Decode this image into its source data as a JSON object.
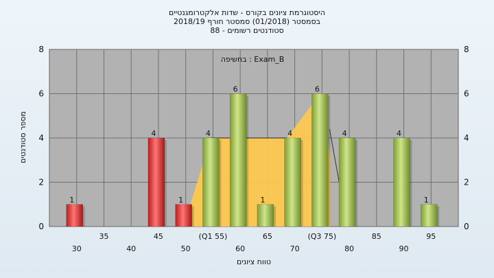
{
  "header": {
    "title_lines": [
      "היסטוגרמת ציונים בקורס - שדות אלקטרומגנטיים",
      "בסמסטר  (01/2018)  סמסטר חורף 2018/19",
      "סטודנטים רשומים - 88"
    ]
  },
  "chart_data": {
    "type": "bar",
    "title": "היסטוגרמת ציונים בקורס - שדות אלקטרומגנטיים",
    "annotation": "בחשיפה : Exam_B",
    "xlabel": "טווח ציונים",
    "ylabel": "מספר סטודנטים",
    "ylim": [
      0,
      8
    ],
    "yticks": [
      0,
      2,
      4,
      6,
      8
    ],
    "grid": true,
    "categories": [
      "30",
      "35",
      "40",
      "45",
      "50",
      "55",
      "60",
      "65",
      "70",
      "75",
      "80",
      "85",
      "90",
      "95"
    ],
    "xtick_labels": [
      "30",
      "35",
      "40",
      "45",
      "50",
      "(Q1 55)",
      "60",
      "65",
      "70",
      "(Q3 75)",
      "80",
      "85",
      "90",
      "95"
    ],
    "values": [
      1,
      0,
      0,
      4,
      1,
      4,
      6,
      1,
      4,
      6,
      4,
      0,
      4,
      1
    ],
    "bar_colors": [
      "#e8403f",
      "#e8403f",
      "#e8403f",
      "#e8403f",
      "#e8403f",
      "#a8cc50",
      "#a8cc50",
      "#a8cc50",
      "#a8cc50",
      "#a8cc50",
      "#a8cc50",
      "#a8cc50",
      "#a8cc50",
      "#a8cc50"
    ],
    "box_plot": {
      "q1": "55",
      "q3": "75",
      "color": "#ffc94d"
    },
    "colors": {
      "plot_background": "#b2b2b2",
      "fail_bar": "#e8403f",
      "pass_bar": "#a8cc50",
      "quartile_box": "#ffc94d"
    }
  }
}
